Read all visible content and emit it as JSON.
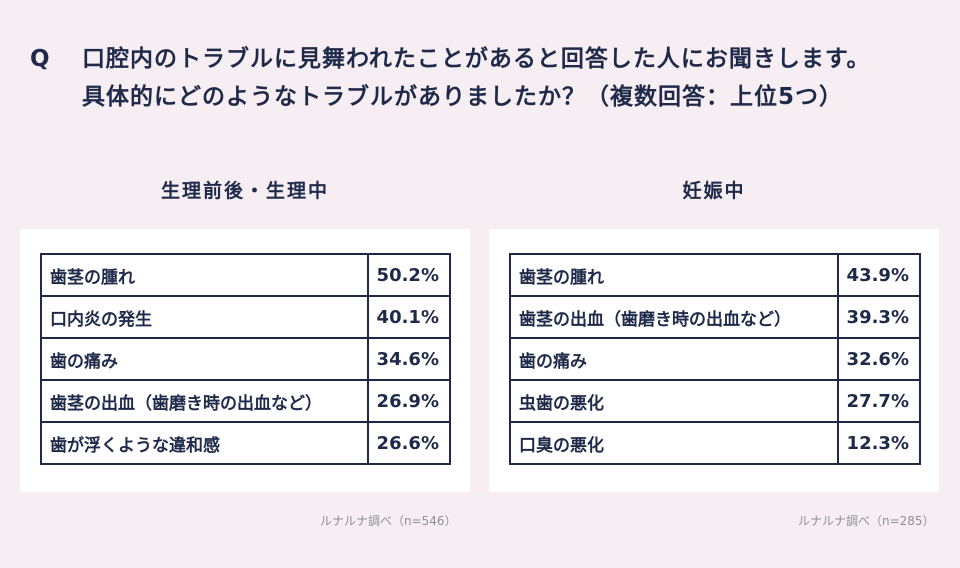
{
  "question": {
    "mark": "Q",
    "line1": "口腔内のトラブルに見舞われたことがあると回答した人にお聞きします。",
    "line2": "具体的にどのようなトラブルがありましたか？（複数回答：上位5つ）"
  },
  "left": {
    "title": "生理前後・生理中",
    "rows": [
      {
        "label": "歯茎の腫れ",
        "value": "50.2%"
      },
      {
        "label": "口内炎の発生",
        "value": "40.1%"
      },
      {
        "label": "歯の痛み",
        "value": "34.6%"
      },
      {
        "label": "歯茎の出血（歯磨き時の出血など）",
        "value": "26.9%"
      },
      {
        "label": "歯が浮くような違和感",
        "value": "26.6%"
      }
    ],
    "source": "ルナルナ調べ（n=546）"
  },
  "right": {
    "title": "妊娠中",
    "rows": [
      {
        "label": "歯茎の腫れ",
        "value": "43.9%"
      },
      {
        "label": "歯茎の出血（歯磨き時の出血など）",
        "value": "39.3%"
      },
      {
        "label": "歯の痛み",
        "value": "32.6%"
      },
      {
        "label": "虫歯の悪化",
        "value": "27.7%"
      },
      {
        "label": "口臭の悪化",
        "value": "12.3%"
      }
    ],
    "source": "ルナルナ調べ（n=285）"
  },
  "colors": {
    "background": "#f6eef3",
    "text": "#1f2a4a",
    "panel": "#ffffff",
    "source": "#8f8f98"
  }
}
